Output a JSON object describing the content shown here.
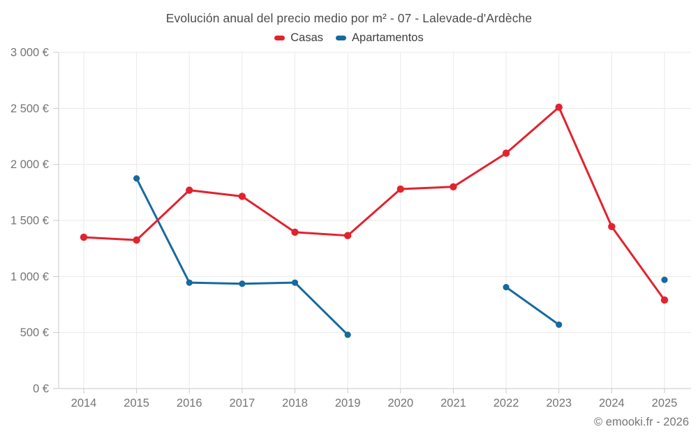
{
  "page": {
    "footer": "© emooki.fr - 2026"
  },
  "chart_data": {
    "type": "line",
    "title": "Evolución anual del precio medio por m² - 07 - Lalevade-d'Ardèche",
    "categories": [
      "2014",
      "2015",
      "2016",
      "2017",
      "2018",
      "2019",
      "2020",
      "2021",
      "2022",
      "2023",
      "2024",
      "2025"
    ],
    "series": [
      {
        "name": "Casas",
        "color": "#e1232e",
        "values": [
          1350,
          1325,
          1770,
          1715,
          1395,
          1365,
          1780,
          1800,
          2100,
          2510,
          1445,
          790
        ]
      },
      {
        "name": "Apartamentos",
        "color": "#17699e",
        "values": [
          null,
          1875,
          945,
          935,
          945,
          480,
          null,
          null,
          905,
          570,
          null,
          970
        ]
      }
    ],
    "xlabel": "",
    "ylabel": "",
    "ylim": [
      0,
      3000
    ],
    "ytick_values": [
      0,
      500,
      1000,
      1500,
      2000,
      2500,
      3000
    ],
    "ytick_labels": [
      "0 €",
      "500 €",
      "1 000 €",
      "1 500 €",
      "2 000 €",
      "2 500 €",
      "3 000 €"
    ],
    "grid": true,
    "legend_position": "top",
    "colors": {
      "gridline": "#eaeaea",
      "axis": "#c9c9c9",
      "tick_text": "#757575",
      "title_text": "#4c4c4c"
    }
  }
}
